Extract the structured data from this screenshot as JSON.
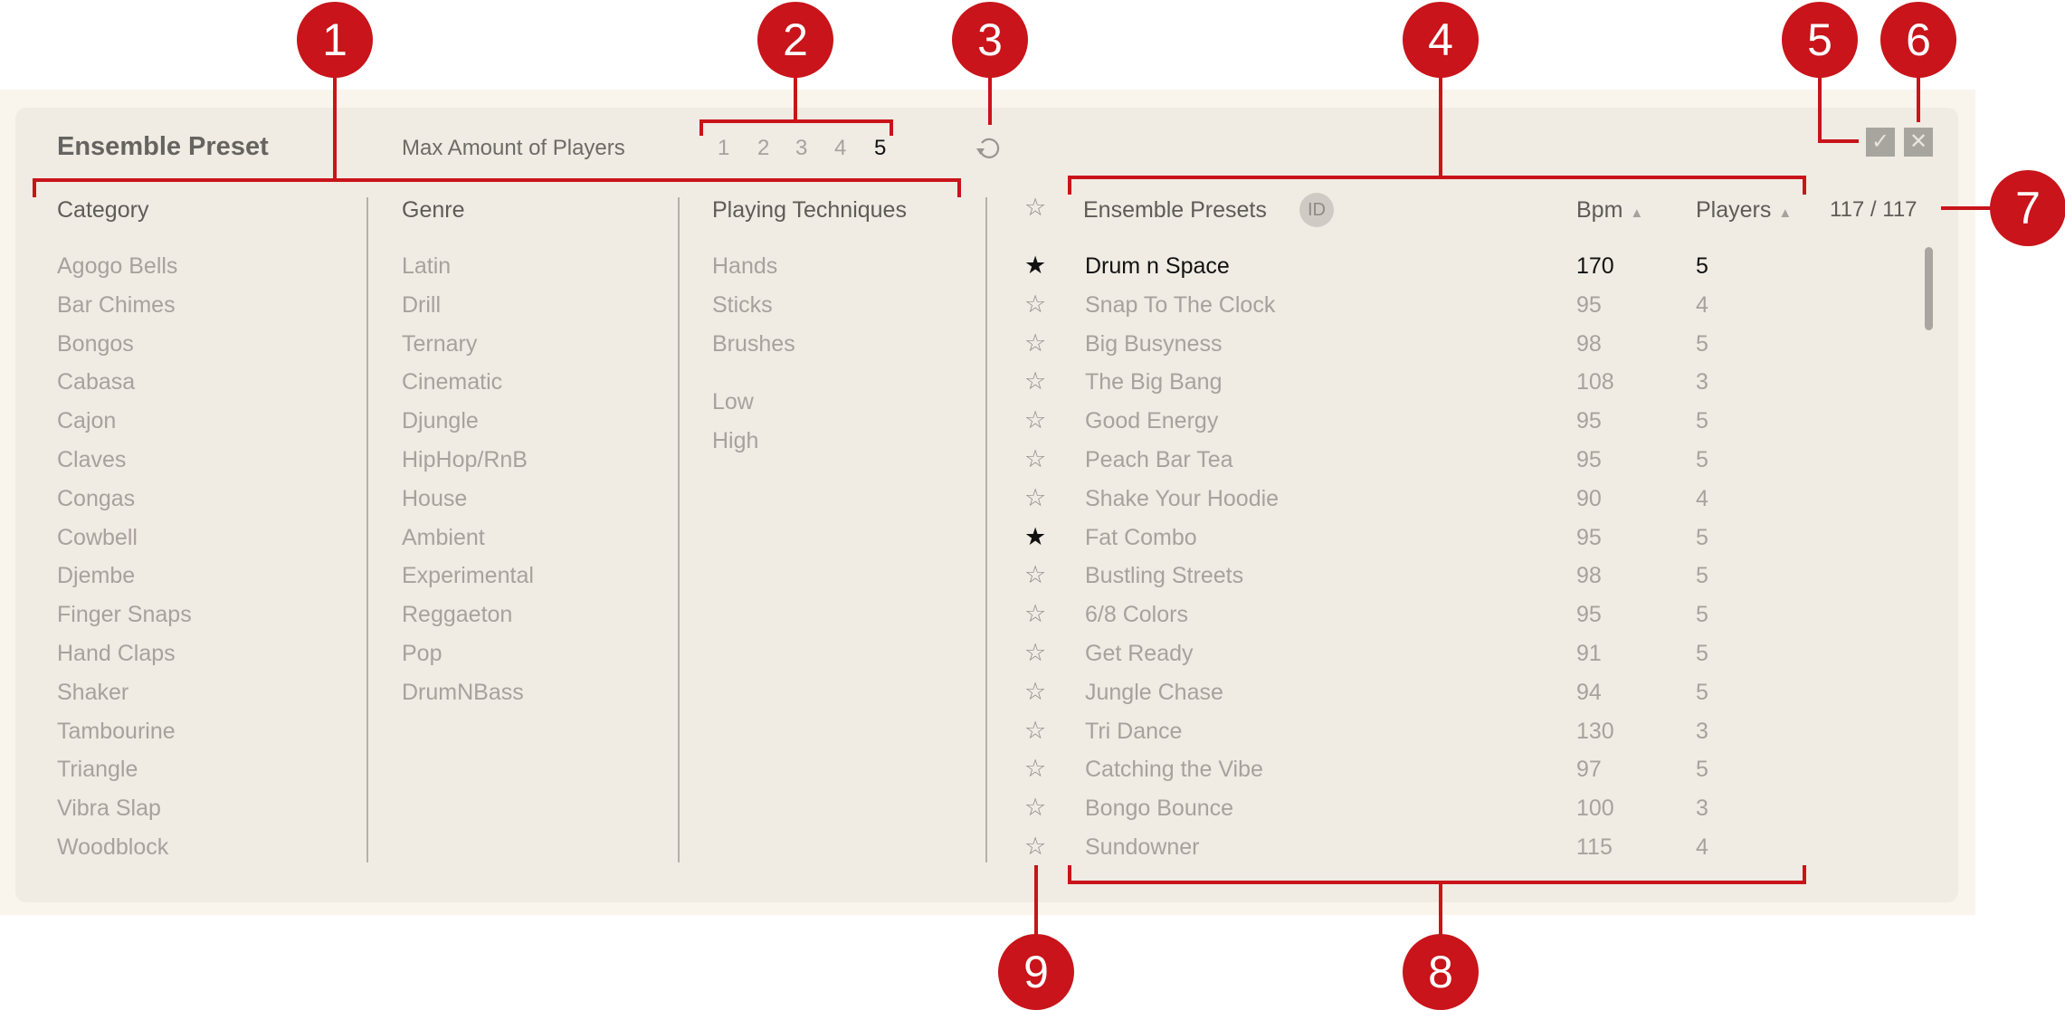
{
  "header": {
    "title": "Ensemble Preset",
    "max_players_label": "Max Amount of Players",
    "player_counts": [
      "1",
      "2",
      "3",
      "4",
      "5"
    ],
    "selected_player_count": "5",
    "reset_icon": "refresh-icon"
  },
  "filters": {
    "category": {
      "label": "Category",
      "items": [
        "Agogo Bells",
        "Bar Chimes",
        "Bongos",
        "Cabasa",
        "Cajon",
        "Claves",
        "Congas",
        "Cowbell",
        "Djembe",
        "Finger Snaps",
        "Hand Claps",
        "Shaker",
        "Tambourine",
        "Triangle",
        "Vibra Slap",
        "Woodblock"
      ]
    },
    "genre": {
      "label": "Genre",
      "items": [
        "Latin",
        "Drill",
        "Ternary",
        "Cinematic",
        "Djungle",
        "HipHop/RnB",
        "House",
        "Ambient",
        "Experimental",
        "Reggaeton",
        "Pop",
        "DrumNBass"
      ]
    },
    "playing_techniques": {
      "label": "Playing Techniques",
      "groups": [
        [
          "Hands",
          "Sticks",
          "Brushes"
        ],
        [
          "Low",
          "High"
        ]
      ]
    }
  },
  "presets": {
    "header": {
      "name": "Ensemble Presets",
      "id_badge": "ID",
      "bpm": "Bpm",
      "players": "Players",
      "sort_icon": "triangle-up-icon"
    },
    "count": "117 / 117",
    "confirm_icon": "check-icon",
    "cancel_icon": "close-icon",
    "rows": [
      {
        "name": "Drum n Space",
        "bpm": "170",
        "players": "5",
        "favorite": true,
        "selected": true
      },
      {
        "name": "Snap To The Clock",
        "bpm": "95",
        "players": "4",
        "favorite": false
      },
      {
        "name": "Big Busyness",
        "bpm": "98",
        "players": "5",
        "favorite": false
      },
      {
        "name": "The Big Bang",
        "bpm": "108",
        "players": "3",
        "favorite": false
      },
      {
        "name": "Good Energy",
        "bpm": "95",
        "players": "5",
        "favorite": false
      },
      {
        "name": "Peach Bar Tea",
        "bpm": "95",
        "players": "5",
        "favorite": false
      },
      {
        "name": "Shake Your Hoodie",
        "bpm": "90",
        "players": "4",
        "favorite": false
      },
      {
        "name": "Fat Combo",
        "bpm": "95",
        "players": "5",
        "favorite": true
      },
      {
        "name": "Bustling Streets",
        "bpm": "98",
        "players": "5",
        "favorite": false
      },
      {
        "name": "6/8 Colors",
        "bpm": "95",
        "players": "5",
        "favorite": false
      },
      {
        "name": "Get Ready",
        "bpm": "91",
        "players": "5",
        "favorite": false
      },
      {
        "name": "Jungle Chase",
        "bpm": "94",
        "players": "5",
        "favorite": false
      },
      {
        "name": "Tri Dance",
        "bpm": "130",
        "players": "3",
        "favorite": false
      },
      {
        "name": "Catching the Vibe",
        "bpm": "97",
        "players": "5",
        "favorite": false
      },
      {
        "name": "Bongo Bounce",
        "bpm": "100",
        "players": "3",
        "favorite": false
      },
      {
        "name": "Sundowner",
        "bpm": "115",
        "players": "4",
        "favorite": false
      }
    ]
  },
  "callouts": [
    "1",
    "2",
    "3",
    "4",
    "5",
    "6",
    "7",
    "8",
    "9"
  ],
  "colors": {
    "accent_callout": "#c8141a",
    "panel": "#f0ebe3",
    "background": "#faf5ec",
    "inactive_text": "#a7a29b",
    "active_text": "#111111"
  }
}
